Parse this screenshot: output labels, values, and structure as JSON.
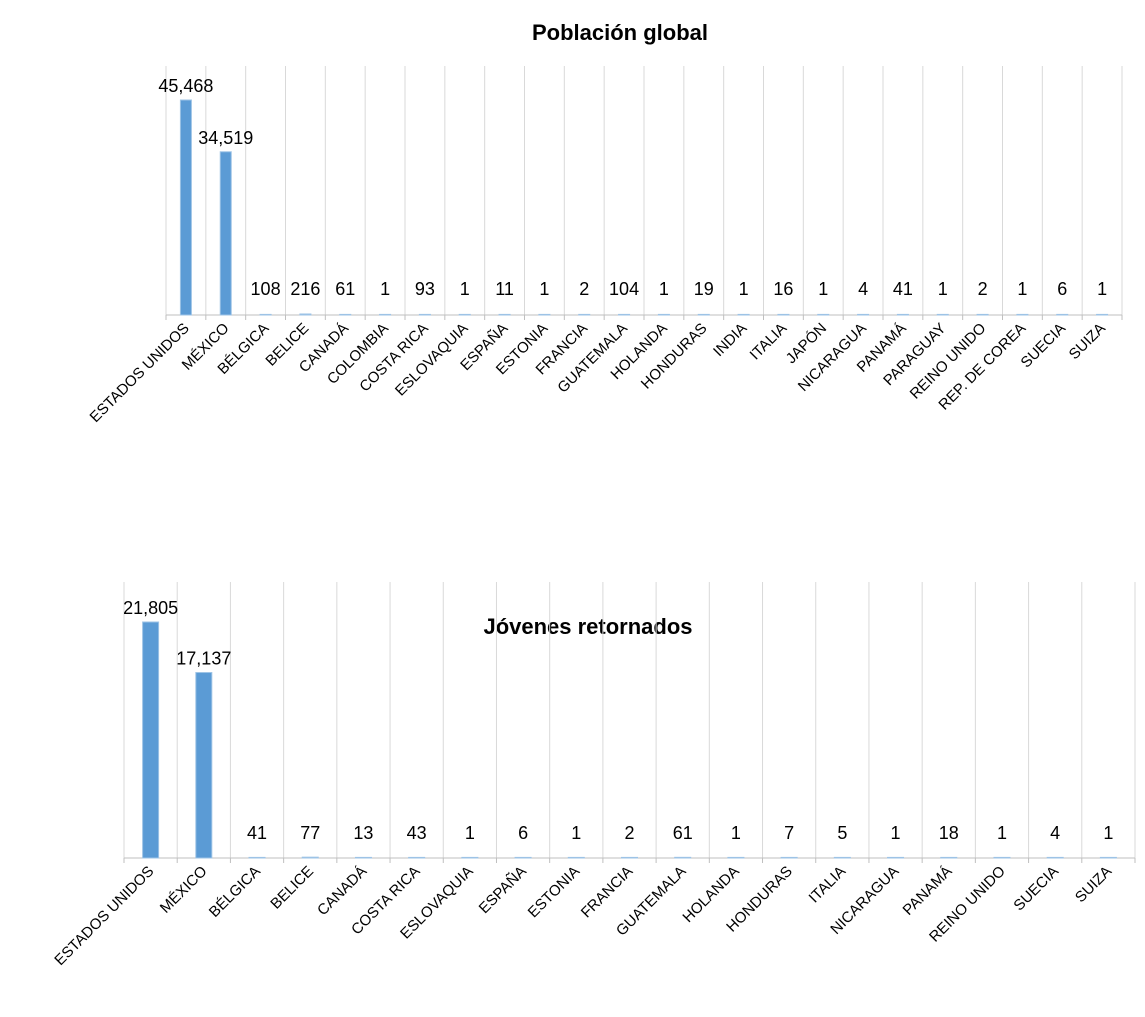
{
  "chart_data": [
    {
      "type": "bar",
      "title": "Población global",
      "categories": [
        "ESTADOS UNIDOS",
        "MÉXICO",
        "BÉLGICA",
        "BELICE",
        "CANADÁ",
        "COLOMBIA",
        "COSTA RICA",
        "ESLOVAQUIA",
        "ESPAÑA",
        "ESTONIA",
        "FRANCIA",
        "GUATEMALA",
        "HOLANDA",
        "HONDURAS",
        "INDIA",
        "ITALIA",
        "JAPÓN",
        "NICARAGUA",
        "PANAMÁ",
        "PARAGUAY",
        "REINO UNIDO",
        "REP. DE COREA",
        "SUECIA",
        "SUIZA"
      ],
      "values": [
        45468,
        34519,
        108,
        216,
        61,
        1,
        93,
        1,
        11,
        1,
        2,
        104,
        1,
        19,
        1,
        16,
        1,
        4,
        41,
        1,
        2,
        1,
        6,
        1
      ],
      "value_labels": [
        "45,468",
        "34,519",
        "108",
        "216",
        "61",
        "1",
        "93",
        "1",
        "11",
        "1",
        "2",
        "104",
        "1",
        "19",
        "1",
        "16",
        "1",
        "4",
        "41",
        "1",
        "2",
        "1",
        "6",
        "1"
      ],
      "bar_color": "#5B9BD5"
    },
    {
      "type": "bar",
      "title": "Jóvenes retornados",
      "categories": [
        "ESTADOS UNIDOS",
        "MÉXICO",
        "BÉLGICA",
        "BELICE",
        "CANADÁ",
        "COSTA RICA",
        "ESLOVAQUIA",
        "ESPAÑA",
        "ESTONIA",
        "FRANCIA",
        "GUATEMALA",
        "HOLANDA",
        "HONDURAS",
        "ITALIA",
        "NICARAGUA",
        "PANAMÁ",
        "REINO UNIDO",
        "SUECIA",
        "SUIZA"
      ],
      "values": [
        21805,
        17137,
        41,
        77,
        13,
        43,
        1,
        6,
        1,
        2,
        61,
        1,
        7,
        5,
        1,
        18,
        1,
        4,
        1
      ],
      "value_labels": [
        "21,805",
        "17,137",
        "41",
        "77",
        "13",
        "43",
        "1",
        "6",
        "1",
        "2",
        "61",
        "1",
        "7",
        "5",
        "1",
        "18",
        "1",
        "4",
        "1"
      ],
      "bar_color": "#5B9BD5"
    }
  ]
}
